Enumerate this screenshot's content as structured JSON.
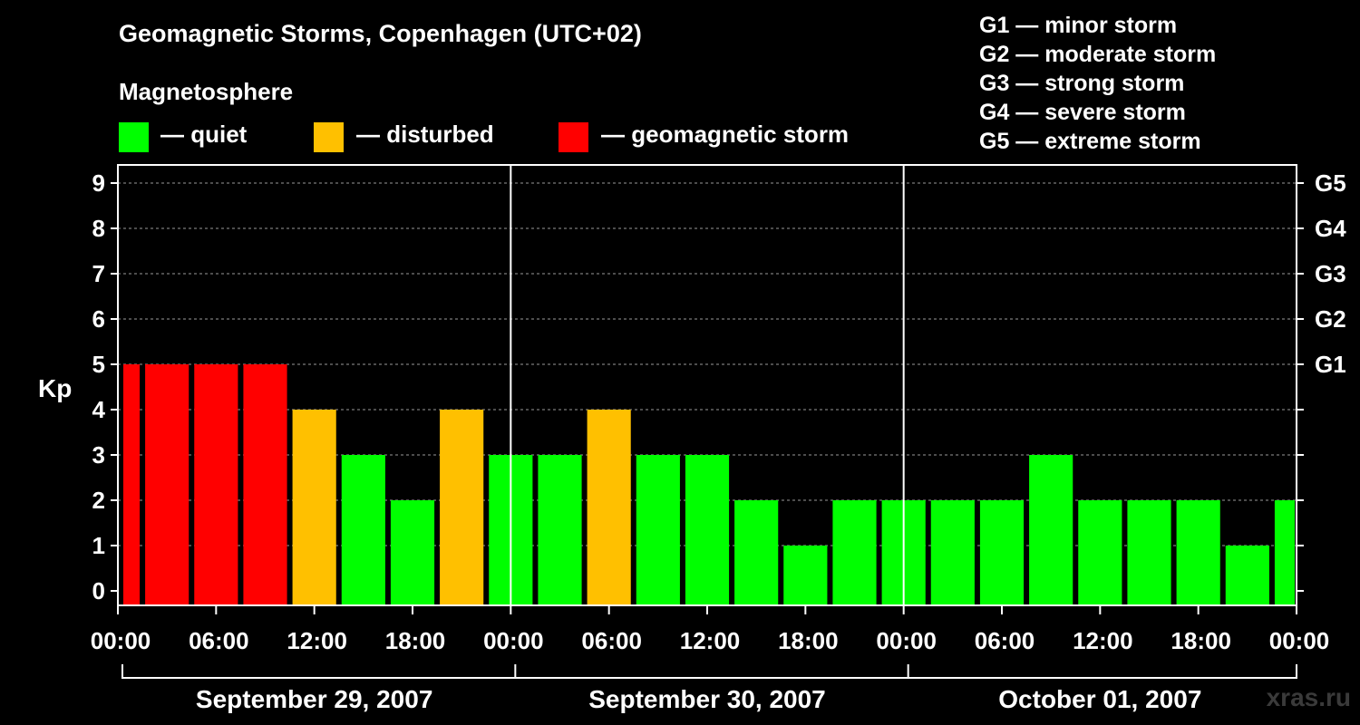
{
  "header": {
    "title": "Geomagnetic Storms, Copenhagen (UTC+02)",
    "magnetosphere_label": "Magnetosphere"
  },
  "legend": [
    {
      "label": "— quiet",
      "color": "#00ff00"
    },
    {
      "label": "— disturbed",
      "color": "#ffc000"
    },
    {
      "label": "— geomagnetic storm",
      "color": "#ff0000"
    }
  ],
  "storm_scale": [
    "G1 — minor storm",
    "G2 — moderate storm",
    "G3 — strong storm",
    "G4 — severe storm",
    "G5 — extreme storm"
  ],
  "watermark": "xras.ru",
  "chart_data": {
    "type": "bar",
    "ylabel": "Kp",
    "ylim": [
      0,
      9
    ],
    "yticks": [
      "0",
      "1",
      "2",
      "3",
      "4",
      "5",
      "6",
      "7",
      "8",
      "9"
    ],
    "right_ticks": [
      {
        "label": "G1",
        "value": 5
      },
      {
        "label": "G2",
        "value": 6
      },
      {
        "label": "G3",
        "value": 7
      },
      {
        "label": "G4",
        "value": 8
      },
      {
        "label": "G5",
        "value": 9
      }
    ],
    "grid": true,
    "xtick_labels": [
      "00:00",
      "06:00",
      "12:00",
      "18:00",
      "00:00",
      "06:00",
      "12:00",
      "18:00",
      "00:00",
      "06:00",
      "12:00",
      "18:00",
      "00:00"
    ],
    "days": [
      "September 29, 2007",
      "September 30, 2007",
      "October 01, 2007"
    ],
    "bar_interval_hours": 3,
    "values": [
      5,
      5,
      5,
      5,
      4,
      3,
      2,
      4,
      3,
      3,
      4,
      3,
      3,
      2,
      1,
      2,
      2,
      2,
      2,
      3,
      2,
      2,
      2,
      1,
      2
    ],
    "colors": {
      "quiet": "#00ff00",
      "disturbed": "#ffc000",
      "storm": "#ff0000"
    }
  }
}
